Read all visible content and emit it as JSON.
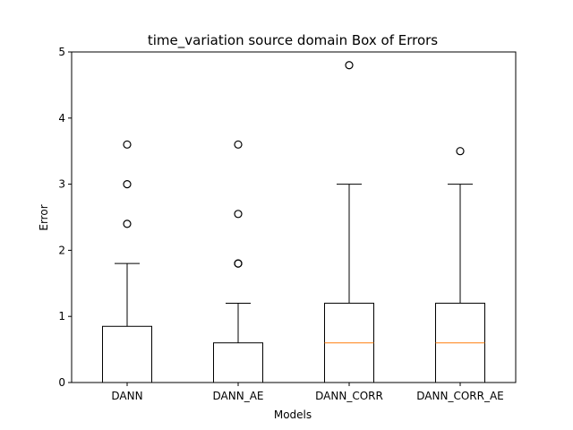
{
  "chart_data": {
    "type": "box",
    "title": "time_variation source domain Box of Errors",
    "xlabel": "Models",
    "ylabel": "Error",
    "ylim": [
      0,
      5
    ],
    "yticks": [
      "0",
      "1",
      "2",
      "3",
      "4",
      "5"
    ],
    "grid": false,
    "categories": [
      "DANN",
      "DANN_AE",
      "DANN_CORR",
      "DANN_CORR_AE"
    ],
    "boxes": [
      {
        "name": "DANN",
        "whisker_low": 0,
        "q1": 0,
        "median": 0,
        "q3": 0.85,
        "whisker_high": 1.8,
        "outliers": [
          2.4,
          3.0,
          3.6
        ]
      },
      {
        "name": "DANN_AE",
        "whisker_low": 0,
        "q1": 0,
        "median": 0,
        "q3": 0.6,
        "whisker_high": 1.2,
        "outliers": [
          1.8,
          1.8,
          2.55,
          3.6
        ]
      },
      {
        "name": "DANN_CORR",
        "whisker_low": 0,
        "q1": 0,
        "median": 0.6,
        "q3": 1.2,
        "whisker_high": 3.0,
        "outliers": [
          4.8
        ]
      },
      {
        "name": "DANN_CORR_AE",
        "whisker_low": 0,
        "q1": 0,
        "median": 0.6,
        "q3": 1.2,
        "whisker_high": 3.0,
        "outliers": [
          3.5
        ]
      }
    ],
    "colors": {
      "box": "#000000",
      "median": "#ff7f0e",
      "outlier": "#000000"
    }
  }
}
